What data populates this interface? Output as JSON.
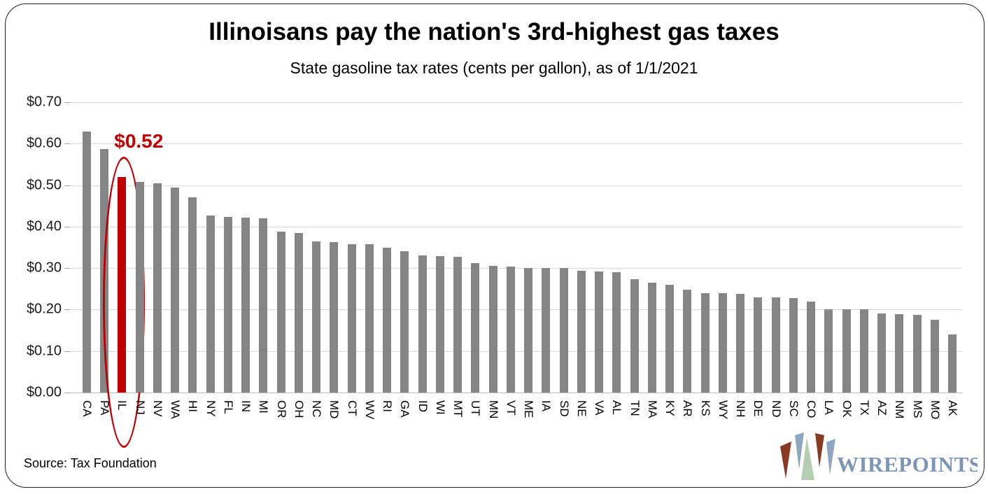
{
  "header": {
    "title": "Illinoisans pay the nation's 3rd-highest gas taxes",
    "subtitle": "State gasoline tax rates (cents per gallon), as of 1/1/2021"
  },
  "chart_data": {
    "type": "bar",
    "title": "Illinoisans pay the nation's 3rd-highest gas taxes",
    "subtitle": "State gasoline tax rates (cents per gallon), as of 1/1/2021",
    "categories": [
      "CA",
      "PA",
      "IL",
      "NJ",
      "NV",
      "WA",
      "HI",
      "NY",
      "FL",
      "IN",
      "MI",
      "OR",
      "OH",
      "NC",
      "MD",
      "CT",
      "WV",
      "RI",
      "GA",
      "ID",
      "WI",
      "MT",
      "UT",
      "MN",
      "VT",
      "ME",
      "IA",
      "SD",
      "NE",
      "VA",
      "AL",
      "TN",
      "MA",
      "KY",
      "AR",
      "KS",
      "WY",
      "NH",
      "DE",
      "ND",
      "SC",
      "CO",
      "LA",
      "OK",
      "TX",
      "AZ",
      "NM",
      "MS",
      "MO",
      "AK"
    ],
    "values": [
      0.63,
      0.587,
      0.52,
      0.507,
      0.505,
      0.494,
      0.47,
      0.426,
      0.423,
      0.421,
      0.42,
      0.388,
      0.385,
      0.364,
      0.363,
      0.357,
      0.357,
      0.35,
      0.34,
      0.33,
      0.329,
      0.327,
      0.312,
      0.306,
      0.303,
      0.301,
      0.3,
      0.3,
      0.294,
      0.292,
      0.29,
      0.274,
      0.265,
      0.26,
      0.248,
      0.24,
      0.24,
      0.238,
      0.23,
      0.23,
      0.227,
      0.22,
      0.2,
      0.2,
      0.2,
      0.19,
      0.189,
      0.188,
      0.175,
      0.14
    ],
    "xlabel": "",
    "ylabel": "",
    "ylim": [
      0,
      0.7
    ],
    "yticks": [
      "$0.00",
      "$0.10",
      "$0.20",
      "$0.30",
      "$0.40",
      "$0.50",
      "$0.60",
      "$0.70"
    ],
    "grid": true,
    "legend": "none",
    "bar_color": "#858585",
    "highlight": {
      "state": "IL",
      "value": 0.52,
      "label": "$0.52",
      "color": "#C00000"
    }
  },
  "annotation": {
    "value_label": "$0.52"
  },
  "footer": {
    "source": "Source: Tax Foundation"
  },
  "logo": {
    "text": "WIREPOINTS",
    "text_color": "#7d95b8",
    "wedge_colors": {
      "red": "#8a3a23",
      "green": "#b5ceb3",
      "blue": "#8fa6c3"
    }
  },
  "colors": {
    "bar": "#858585",
    "highlight": "#C00000",
    "gridline": "#d9d9d9",
    "border": "#1f1f1f"
  }
}
